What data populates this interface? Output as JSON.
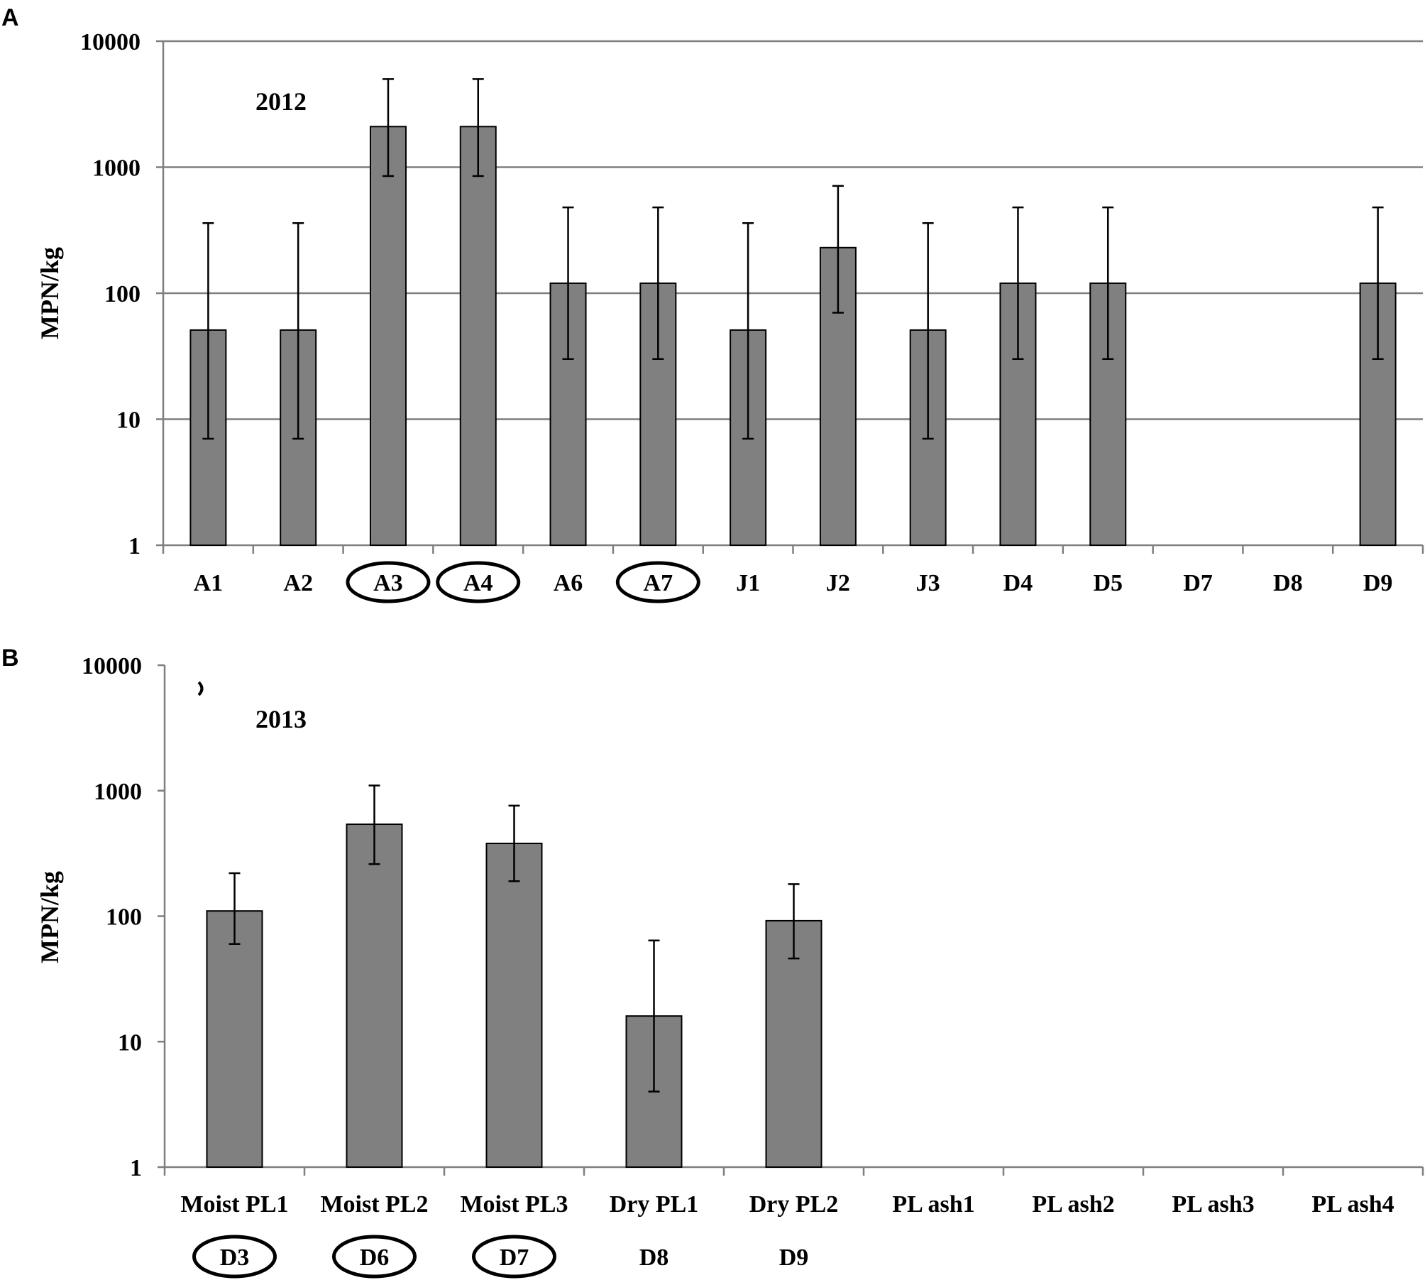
{
  "colors": {
    "bar": "#808080",
    "gridline": "#7f7f7f",
    "axis": "#7f7f7f",
    "text": "#000000"
  },
  "chart_data": [
    {
      "panel": "A",
      "type": "bar",
      "annotation": "2012",
      "ylabel": "MPN/kg",
      "yscale": "log",
      "ylim": [
        1,
        10000
      ],
      "yticks": [
        "1",
        "10",
        "100",
        "1000",
        "10000"
      ],
      "grid": true,
      "categories": [
        "A1",
        "A2",
        "A3",
        "A4",
        "A6",
        "A7",
        "J1",
        "J2",
        "J3",
        "D4",
        "D5",
        "D7",
        "D8",
        "D9"
      ],
      "sublabels": [],
      "circled": [
        "A3",
        "A4",
        "A7"
      ],
      "values": [
        51,
        51,
        2100,
        2100,
        120,
        120,
        51,
        230,
        51,
        120,
        120,
        null,
        null,
        120
      ],
      "error_low": [
        7,
        7,
        850,
        850,
        30,
        30,
        7,
        70,
        7,
        30,
        30,
        null,
        null,
        30
      ],
      "error_high": [
        360,
        360,
        5000,
        5000,
        480,
        480,
        360,
        710,
        360,
        480,
        480,
        null,
        null,
        480
      ]
    },
    {
      "panel": "B",
      "type": "bar",
      "annotation": "2013",
      "ylabel": "MPN/kg",
      "yscale": "log",
      "ylim": [
        1,
        10000
      ],
      "yticks": [
        "1",
        "10",
        "100",
        "1000",
        "10000"
      ],
      "grid": false,
      "categories": [
        "Moist PL1",
        "Moist PL2",
        "Moist PL3",
        "Dry PL1",
        "Dry PL2",
        "PL ash1",
        "PL ash2",
        "PL ash3",
        "PL ash4"
      ],
      "sublabels": [
        "D3",
        "D6",
        "D7",
        "D8",
        "D9",
        "",
        "",
        "",
        ""
      ],
      "circled": [
        "D3",
        "D6",
        "D7"
      ],
      "values": [
        110,
        540,
        380,
        16,
        92,
        null,
        null,
        null,
        null
      ],
      "error_low": [
        60,
        260,
        190,
        4,
        46,
        null,
        null,
        null,
        null
      ],
      "error_high": [
        220,
        1100,
        760,
        64,
        180,
        null,
        null,
        null,
        null
      ]
    }
  ]
}
